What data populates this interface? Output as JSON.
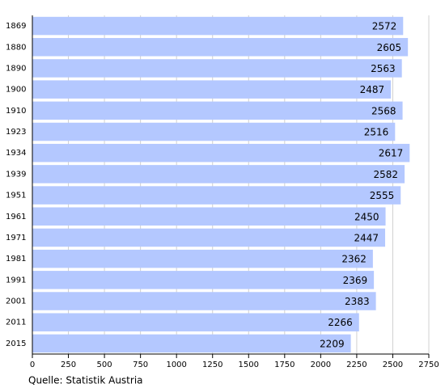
{
  "chart_data": {
    "type": "bar",
    "orientation": "horizontal",
    "categories": [
      "1869",
      "1880",
      "1890",
      "1900",
      "1910",
      "1923",
      "1934",
      "1939",
      "1951",
      "1961",
      "1971",
      "1981",
      "1991",
      "2001",
      "2011",
      "2015"
    ],
    "values": [
      2572,
      2605,
      2563,
      2487,
      2568,
      2516,
      2617,
      2582,
      2555,
      2450,
      2447,
      2362,
      2369,
      2383,
      2266,
      2209
    ],
    "color": "#b4c8ff",
    "xlim": [
      0,
      2750
    ],
    "xticks": [
      0,
      250,
      500,
      750,
      1000,
      1250,
      1500,
      1750,
      2000,
      2250,
      2500,
      2750
    ],
    "grid": true,
    "source": "Quelle: Statistik Austria"
  }
}
